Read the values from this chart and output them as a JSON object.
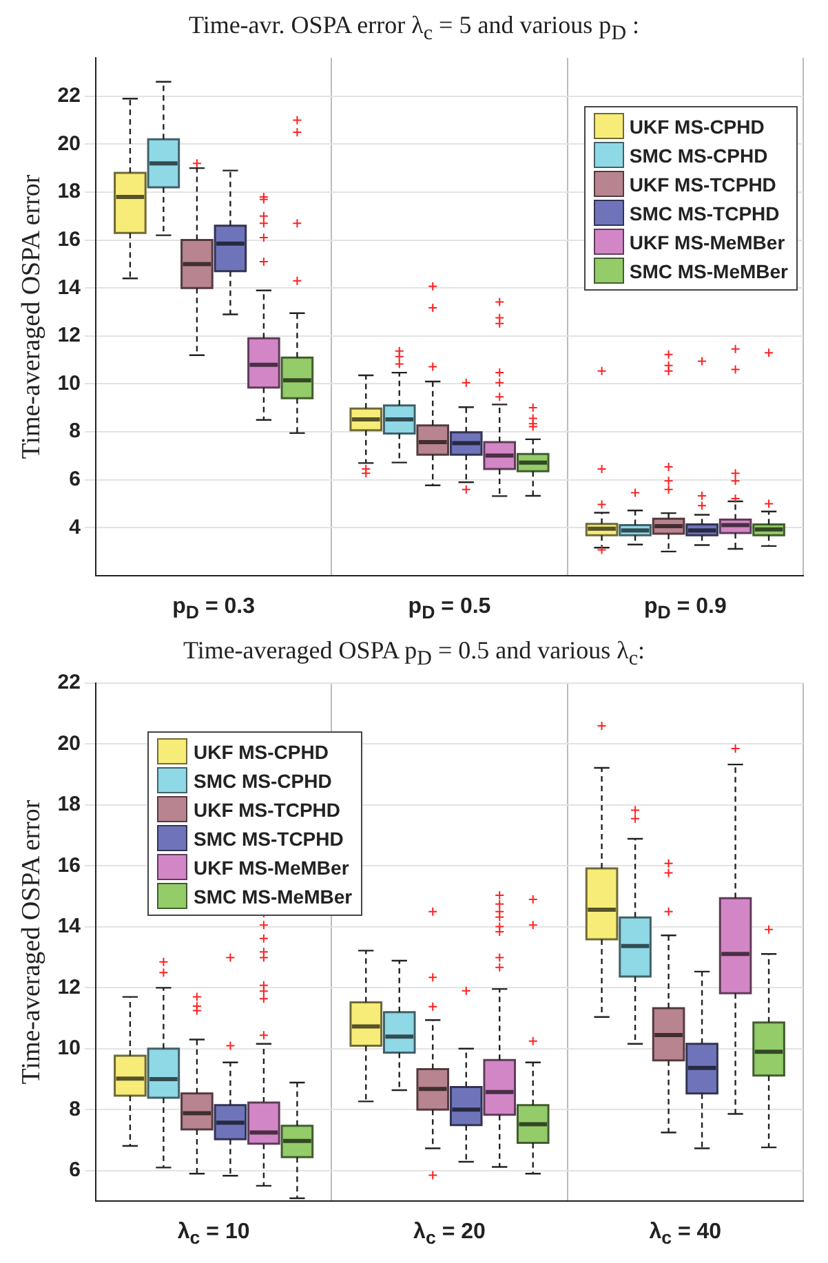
{
  "chart_data": [
    {
      "type": "box",
      "title": "Time-avr. OSPA error λ$_{c}$ = 5 and various p$_{D}$ :",
      "ylabel": "Time-averaged OSPA error",
      "categories": [
        "p$_{D}$ = 0.3",
        "p$_{D}$ = 0.5",
        "p$_{D}$ = 0.9"
      ],
      "ylim": [
        2,
        23.6
      ],
      "yticks": [
        4,
        6,
        8,
        10,
        12,
        14,
        16,
        18,
        20,
        22
      ],
      "grid": true,
      "legend": "top right",
      "series": [
        {
          "name": "UKF MS-CPHD",
          "color": "#f7ec78",
          "boxes": [
            {
              "low": 14.4,
              "q1": 16.3,
              "median": 17.8,
              "q3": 18.8,
              "high": 21.9
            },
            {
              "low": 6.7,
              "q1": 8.07,
              "median": 8.52,
              "q3": 8.97,
              "high": 10.36,
              "outliers": [
                6.45,
                6.27
              ]
            },
            {
              "low": 3.17,
              "q1": 3.69,
              "median": 3.96,
              "q3": 4.16,
              "high": 4.63,
              "outliers": [
                10.54,
                6.45,
                4.97,
                3.08
              ]
            }
          ]
        },
        {
          "name": "SMC MS-CPHD",
          "color": "#8fd8e6",
          "boxes": [
            {
              "low": 16.2,
              "q1": 18.2,
              "median": 19.2,
              "q3": 20.2,
              "high": 22.6
            },
            {
              "low": 6.72,
              "q1": 7.93,
              "median": 8.52,
              "q3": 9.1,
              "high": 10.47,
              "outliers": [
                11.37,
                11.14,
                10.83
              ]
            },
            {
              "low": 3.3,
              "q1": 3.69,
              "median": 3.89,
              "q3": 4.11,
              "high": 4.72,
              "outliers": [
                5.46
              ]
            }
          ]
        },
        {
          "name": "UKF MS-TCPHD",
          "color": "#b8848f",
          "boxes": [
            {
              "low": 11.2,
              "q1": 14.0,
              "median": 15.0,
              "q3": 16.0,
              "high": 19.0,
              "outliers": [
                19.2
              ]
            },
            {
              "low": 5.77,
              "q1": 7.05,
              "median": 7.57,
              "q3": 8.27,
              "high": 10.1,
              "outliers": [
                14.07,
                13.17,
                10.72
              ]
            },
            {
              "low": 3.01,
              "q1": 3.75,
              "median": 4.07,
              "q3": 4.38,
              "high": 4.61,
              "outliers": [
                11.23,
                10.77,
                10.54,
                6.54,
                5.96,
                5.6
              ]
            }
          ]
        },
        {
          "name": "SMC MS-TCPHD",
          "color": "#6f74ba",
          "boxes": [
            {
              "low": 12.9,
              "q1": 14.7,
              "median": 15.85,
              "q3": 16.6,
              "high": 18.9
            },
            {
              "low": 5.9,
              "q1": 7.05,
              "median": 7.53,
              "q3": 7.98,
              "high": 9.03,
              "outliers": [
                10.05,
                5.6
              ]
            },
            {
              "low": 3.28,
              "q1": 3.69,
              "median": 3.89,
              "q3": 4.14,
              "high": 4.54,
              "outliers": [
                10.95,
                5.33,
                4.92
              ]
            }
          ]
        },
        {
          "name": "UKF MS-MeMBer",
          "color": "#d386c6",
          "boxes": [
            {
              "low": 8.5,
              "q1": 9.85,
              "median": 10.8,
              "q3": 11.9,
              "high": 13.9,
              "outliers": [
                17.8,
                17.7,
                17.0,
                16.7,
                16.1,
                15.1
              ]
            },
            {
              "low": 5.32,
              "q1": 6.45,
              "median": 7.01,
              "q3": 7.57,
              "high": 9.14,
              "outliers": [
                13.42,
                12.76,
                12.52,
                10.47,
                10.05,
                9.46
              ]
            },
            {
              "low": 3.12,
              "q1": 3.78,
              "median": 4.11,
              "q3": 4.34,
              "high": 5.1,
              "outliers": [
                11.46,
                10.6,
                6.27,
                5.96,
                5.22
              ]
            }
          ]
        },
        {
          "name": "SMC MS-MeMBer",
          "color": "#93cc68",
          "boxes": [
            {
              "low": 7.95,
              "q1": 9.4,
              "median": 10.15,
              "q3": 11.1,
              "high": 12.95,
              "outliers": [
                21.0,
                20.5,
                16.7,
                14.3
              ]
            },
            {
              "low": 5.33,
              "q1": 6.36,
              "median": 6.72,
              "q3": 7.08,
              "high": 7.69,
              "outliers": [
                9.01,
                8.56,
                8.34,
                8.22
              ]
            },
            {
              "low": 3.24,
              "q1": 3.69,
              "median": 3.93,
              "q3": 4.14,
              "high": 4.68,
              "outliers": [
                11.3,
                5.0
              ]
            }
          ]
        }
      ]
    },
    {
      "type": "box",
      "title": "Time-averaged OSPA p$_{D}$ = 0.5 and various λ$_{c}$:",
      "ylabel": "Time-averaged OSPA error",
      "categories": [
        "λ$_{c}$ = 10",
        "λ$_{c}$ = 20",
        "λ$_{c}$ = 40"
      ],
      "ylim": [
        5,
        22
      ],
      "yticks": [
        6,
        8,
        10,
        12,
        14,
        16,
        18,
        20,
        22
      ],
      "grid": true,
      "legend": "top left",
      "series": [
        {
          "name": "UKF MS-CPHD",
          "color": "#f7ec78",
          "boxes": [
            {
              "low": 6.81,
              "q1": 8.46,
              "median": 9.02,
              "q3": 9.77,
              "high": 11.7
            },
            {
              "low": 8.27,
              "q1": 10.1,
              "median": 10.73,
              "q3": 11.52,
              "high": 13.22
            },
            {
              "low": 11.04,
              "q1": 13.59,
              "median": 14.56,
              "q3": 15.92,
              "high": 19.22,
              "outliers": [
                20.6
              ]
            }
          ]
        },
        {
          "name": "SMC MS-CPHD",
          "color": "#8fd8e6",
          "boxes": [
            {
              "low": 6.1,
              "q1": 8.39,
              "median": 9.0,
              "q3": 10.0,
              "high": 12.0,
              "outliers": [
                12.85,
                12.5
              ]
            },
            {
              "low": 8.64,
              "q1": 9.87,
              "median": 10.4,
              "q3": 11.2,
              "high": 12.89
            },
            {
              "low": 10.16,
              "q1": 12.37,
              "median": 13.37,
              "q3": 14.31,
              "high": 16.89,
              "outliers": [
                17.83,
                17.55
              ]
            }
          ]
        },
        {
          "name": "UKF MS-TCPHD",
          "color": "#b8848f",
          "boxes": [
            {
              "low": 5.9,
              "q1": 7.35,
              "median": 7.88,
              "q3": 8.53,
              "high": 10.3,
              "outliers": [
                11.7,
                11.4,
                11.25
              ]
            },
            {
              "low": 6.73,
              "q1": 8.0,
              "median": 8.68,
              "q3": 9.33,
              "high": 10.94,
              "outliers": [
                14.5,
                12.34,
                11.38,
                5.85
              ]
            },
            {
              "low": 7.25,
              "q1": 9.62,
              "median": 10.45,
              "q3": 11.33,
              "high": 13.72,
              "outliers": [
                16.08,
                15.77,
                14.5
              ]
            }
          ]
        },
        {
          "name": "SMC MS-TCPHD",
          "color": "#6f74ba",
          "boxes": [
            {
              "low": 5.83,
              "q1": 7.03,
              "median": 7.57,
              "q3": 8.15,
              "high": 9.55,
              "outliers": [
                12.99,
                10.1
              ]
            },
            {
              "low": 6.29,
              "q1": 7.49,
              "median": 8.0,
              "q3": 8.74,
              "high": 10.0,
              "outliers": [
                11.9
              ]
            },
            {
              "low": 6.73,
              "q1": 8.53,
              "median": 9.37,
              "q3": 10.16,
              "high": 12.53
            }
          ]
        },
        {
          "name": "UKF MS-MeMBer",
          "color": "#d386c6",
          "boxes": [
            {
              "low": 5.5,
              "q1": 6.88,
              "median": 7.25,
              "q3": 8.23,
              "high": 10.16,
              "outliers": [
                14.45,
                14.06,
                13.62,
                13.18,
                12.99,
                12.08,
                11.89,
                11.64,
                10.44
              ]
            },
            {
              "low": 6.12,
              "q1": 7.83,
              "median": 8.58,
              "q3": 9.63,
              "high": 11.96,
              "outliers": [
                15.04,
                14.75,
                14.5,
                14.32,
                14.01,
                13.84,
                12.99,
                12.67
              ]
            },
            {
              "low": 7.86,
              "q1": 11.82,
              "median": 13.11,
              "q3": 14.94,
              "high": 19.33,
              "outliers": [
                19.85
              ]
            }
          ]
        },
        {
          "name": "SMC MS-MeMBer",
          "color": "#93cc68",
          "boxes": [
            {
              "low": 5.09,
              "q1": 6.44,
              "median": 6.97,
              "q3": 7.47,
              "high": 8.89
            },
            {
              "low": 5.9,
              "q1": 6.91,
              "median": 7.52,
              "q3": 8.15,
              "high": 9.55,
              "outliers": [
                14.9,
                14.06,
                10.25
              ]
            },
            {
              "low": 6.76,
              "q1": 9.12,
              "median": 9.9,
              "q3": 10.86,
              "high": 13.11,
              "outliers": [
                13.91
              ]
            }
          ]
        }
      ]
    }
  ]
}
